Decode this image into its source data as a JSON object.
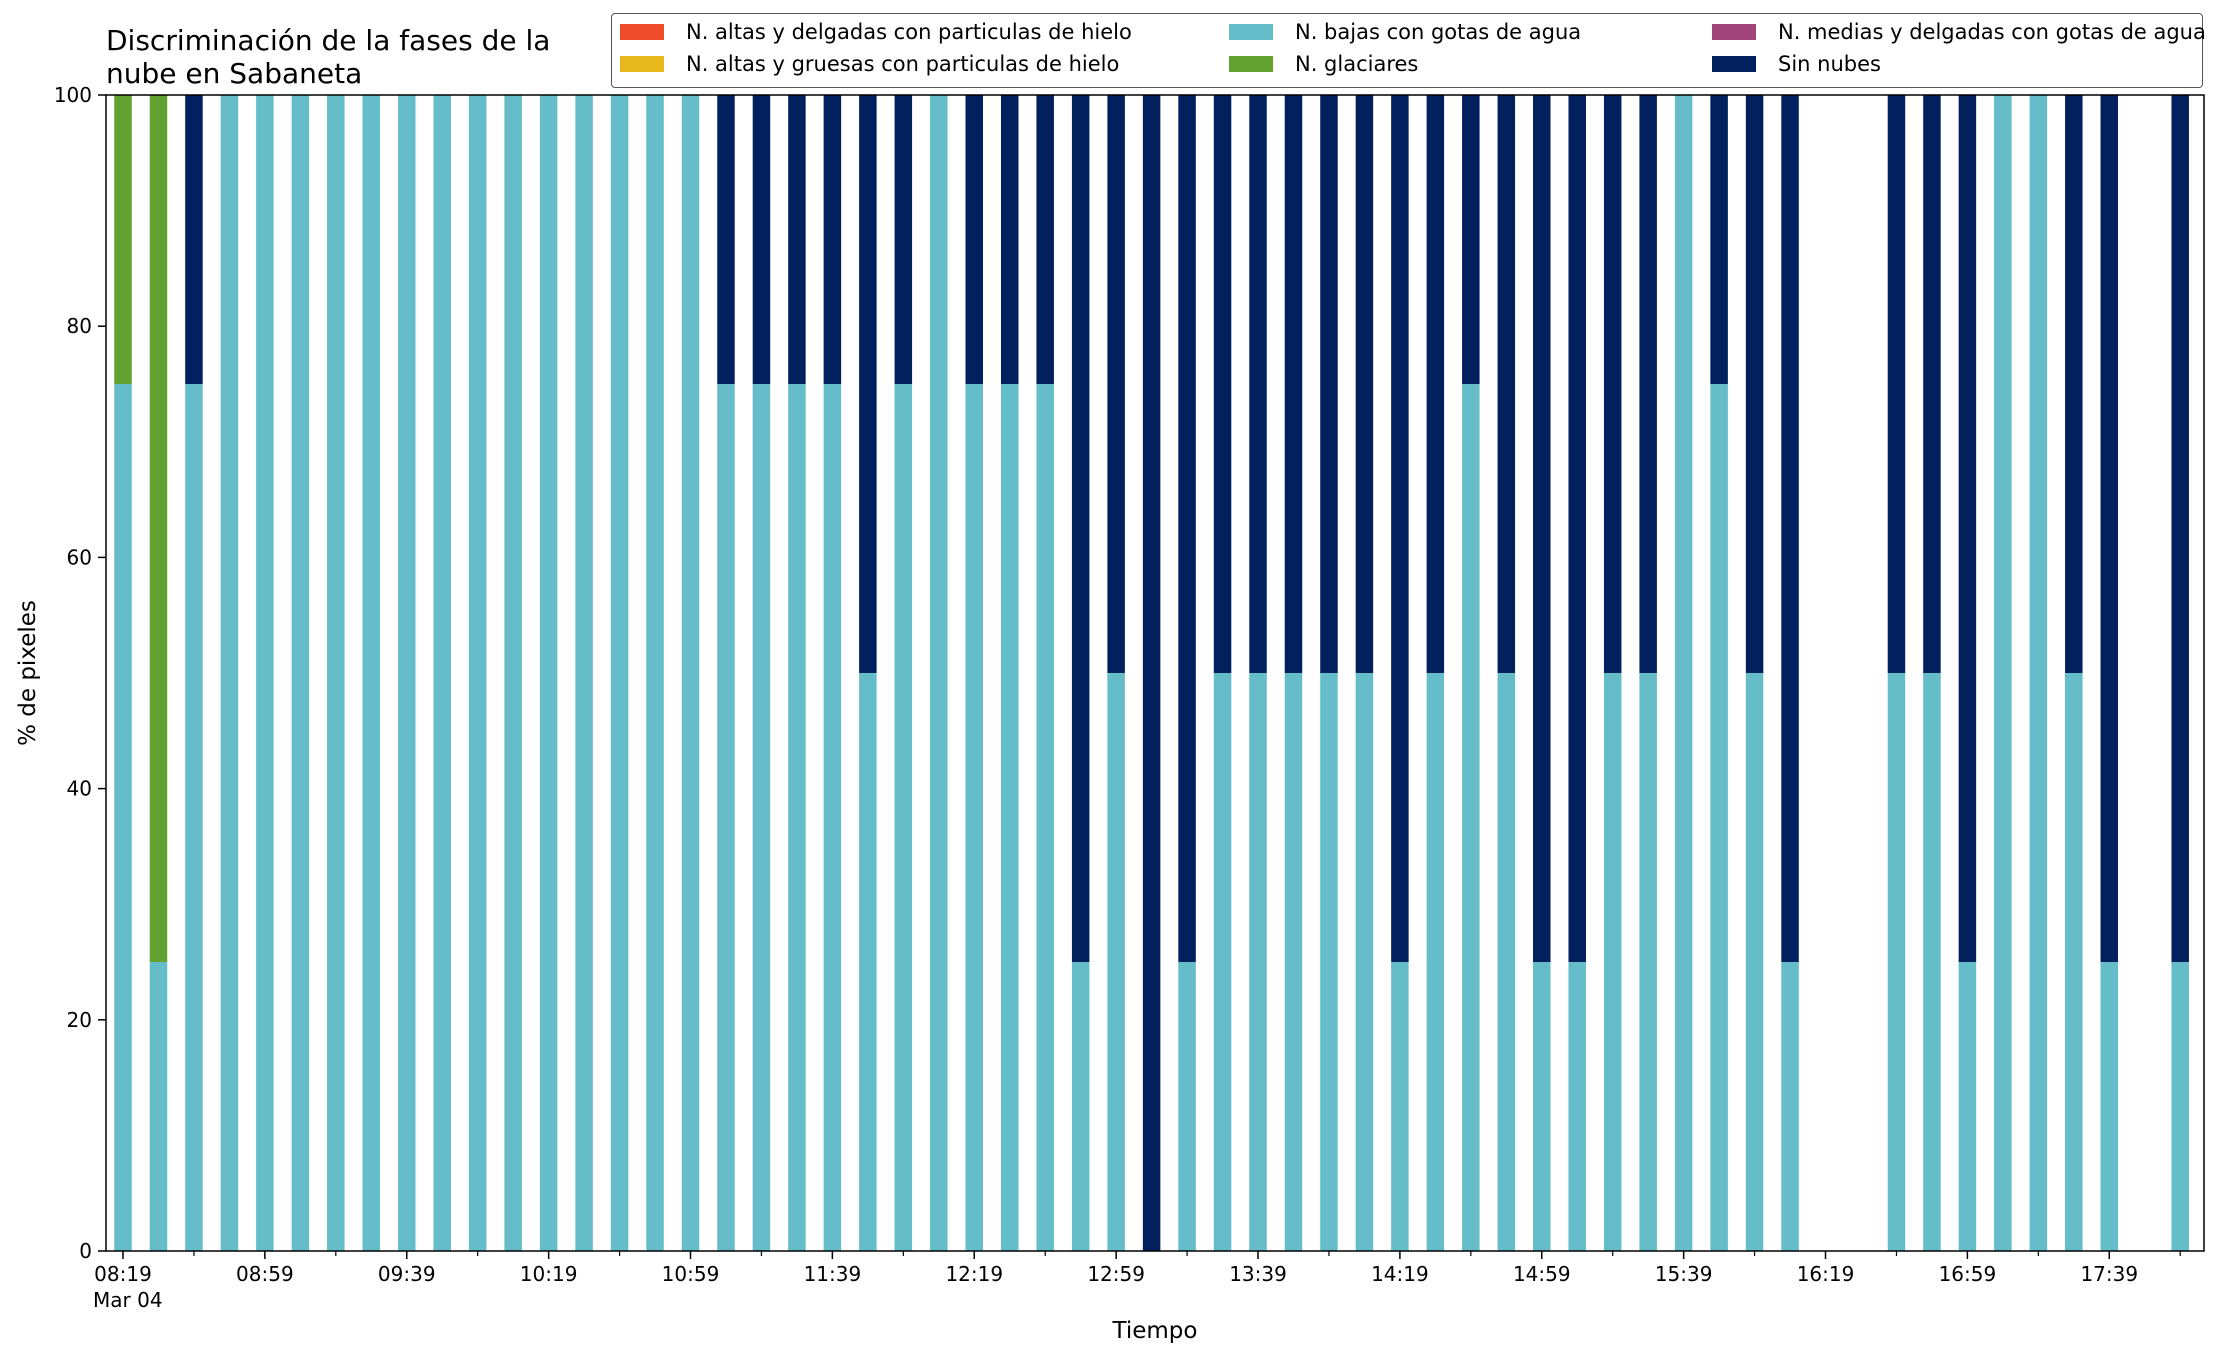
{
  "chart_data": {
    "type": "bar",
    "stacked": true,
    "title": "Discriminación de la fases de la\nnube en Sabaneta",
    "xlabel": "Tiempo",
    "ylabel": "% de pixeles",
    "ylim": [
      0,
      100
    ],
    "yticks": [
      0,
      20,
      40,
      60,
      80,
      100
    ],
    "xtick_labels": [
      "08:19",
      "08:59",
      "09:39",
      "10:19",
      "10:59",
      "11:39",
      "12:19",
      "12:59",
      "13:39",
      "14:19",
      "14:59",
      "15:39",
      "16:19",
      "16:59",
      "17:39"
    ],
    "xtick_sublabel": "Mar 04",
    "legend_position": "top-right",
    "grid": false,
    "categories": [
      "08:19",
      "08:29",
      "08:39",
      "08:49",
      "08:59",
      "09:09",
      "09:19",
      "09:29",
      "09:39",
      "09:49",
      "09:59",
      "10:09",
      "10:19",
      "10:29",
      "10:39",
      "10:49",
      "10:59",
      "11:09",
      "11:19",
      "11:29",
      "11:39",
      "11:49",
      "11:59",
      "12:09",
      "12:19",
      "12:29",
      "12:39",
      "12:49",
      "12:59",
      "13:09",
      "13:19",
      "13:29",
      "13:39",
      "13:49",
      "13:59",
      "14:09",
      "14:19",
      "14:29",
      "14:39",
      "14:49",
      "14:59",
      "15:09",
      "15:19",
      "15:29",
      "15:39",
      "15:49",
      "15:59",
      "16:09",
      "16:19",
      "16:29",
      "16:39",
      "16:49",
      "16:59",
      "17:09",
      "17:19",
      "17:29",
      "17:39",
      "17:49",
      "17:59"
    ],
    "series": [
      {
        "name": "N. altas y delgadas con particulas de hielo",
        "color": "#ee4b2b",
        "values": [
          0,
          0,
          0,
          0,
          0,
          0,
          0,
          0,
          0,
          0,
          0,
          0,
          0,
          0,
          0,
          0,
          0,
          0,
          0,
          0,
          0,
          0,
          0,
          0,
          0,
          0,
          0,
          0,
          0,
          0,
          0,
          0,
          0,
          0,
          0,
          0,
          0,
          0,
          0,
          0,
          0,
          0,
          0,
          0,
          0,
          0,
          0,
          0,
          0,
          0,
          0,
          0,
          0,
          0,
          0,
          0,
          0,
          0,
          0
        ]
      },
      {
        "name": "N. altas y gruesas con particulas de hielo",
        "color": "#e6b81e",
        "values": [
          0,
          0,
          0,
          0,
          0,
          0,
          0,
          0,
          0,
          0,
          0,
          0,
          0,
          0,
          0,
          0,
          0,
          0,
          0,
          0,
          0,
          0,
          0,
          0,
          0,
          0,
          0,
          0,
          0,
          0,
          0,
          0,
          0,
          0,
          0,
          0,
          0,
          0,
          0,
          0,
          0,
          0,
          0,
          0,
          0,
          0,
          0,
          0,
          0,
          0,
          0,
          0,
          0,
          0,
          0,
          0,
          0,
          0,
          0
        ]
      },
      {
        "name": "N. bajas con gotas de agua",
        "color": "#64bdc8",
        "values": [
          75,
          25,
          75,
          100,
          100,
          100,
          100,
          100,
          100,
          100,
          100,
          100,
          100,
          100,
          100,
          100,
          100,
          75,
          75,
          75,
          75,
          50,
          75,
          100,
          75,
          75,
          75,
          25,
          50,
          0,
          25,
          50,
          50,
          50,
          50,
          50,
          25,
          50,
          75,
          50,
          25,
          25,
          50,
          50,
          100,
          75,
          50,
          25,
          0,
          0,
          50,
          50,
          25,
          100,
          100,
          50,
          25,
          0,
          25
        ]
      },
      {
        "name": "N. glaciares",
        "color": "#63a231",
        "values": [
          25,
          75,
          0,
          0,
          0,
          0,
          0,
          0,
          0,
          0,
          0,
          0,
          0,
          0,
          0,
          0,
          0,
          0,
          0,
          0,
          0,
          0,
          0,
          0,
          0,
          0,
          0,
          0,
          0,
          0,
          0,
          0,
          0,
          0,
          0,
          0,
          0,
          0,
          0,
          0,
          0,
          0,
          0,
          0,
          0,
          0,
          0,
          0,
          0,
          0,
          0,
          0,
          0,
          0,
          0,
          0,
          0,
          0,
          0
        ]
      },
      {
        "name": "N. medias y delgadas con gotas de agua",
        "color": "#a0447a",
        "values": [
          0,
          0,
          0,
          0,
          0,
          0,
          0,
          0,
          0,
          0,
          0,
          0,
          0,
          0,
          0,
          0,
          0,
          0,
          0,
          0,
          0,
          0,
          0,
          0,
          0,
          0,
          0,
          0,
          0,
          0,
          0,
          0,
          0,
          0,
          0,
          0,
          0,
          0,
          0,
          0,
          0,
          0,
          0,
          0,
          0,
          0,
          0,
          0,
          0,
          0,
          0,
          0,
          0,
          0,
          0,
          0,
          0,
          0,
          0
        ]
      },
      {
        "name": "Sin nubes",
        "color": "#03205e",
        "values": [
          0,
          0,
          25,
          0,
          0,
          0,
          0,
          0,
          0,
          0,
          0,
          0,
          0,
          0,
          0,
          0,
          0,
          25,
          25,
          25,
          25,
          50,
          25,
          0,
          25,
          25,
          25,
          75,
          50,
          100,
          75,
          50,
          50,
          50,
          50,
          50,
          75,
          50,
          25,
          50,
          75,
          75,
          50,
          50,
          0,
          25,
          50,
          75,
          0,
          0,
          50,
          50,
          75,
          0,
          0,
          50,
          75,
          0,
          75
        ]
      }
    ],
    "legend_order": [
      0,
      1,
      2,
      3,
      4,
      5
    ]
  }
}
